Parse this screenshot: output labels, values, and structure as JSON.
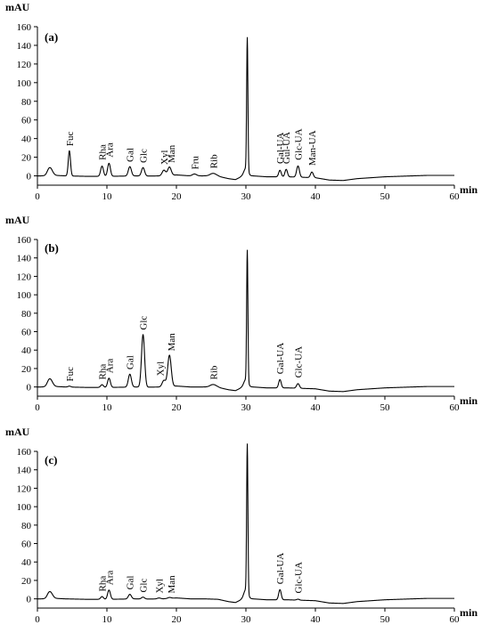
{
  "figure": {
    "x_unit": "min",
    "y_unit": "mAU"
  },
  "chart_data": [
    {
      "type": "line",
      "panel_label": "(a)",
      "ylabel": "mAU",
      "xlabel": "min",
      "xlim": [
        0,
        60
      ],
      "ylim": [
        -10,
        160
      ],
      "x_ticks": [
        0,
        10,
        20,
        30,
        40,
        50,
        60
      ],
      "y_ticks": [
        0,
        20,
        40,
        60,
        80,
        100,
        120,
        140,
        160
      ],
      "grid": false,
      "series": [
        {
          "baseline": [
            [
              0,
              0
            ],
            [
              1.2,
              0
            ],
            [
              1.6,
              1
            ],
            [
              2.6,
              0.5
            ],
            [
              4,
              0
            ],
            [
              7,
              -0.5
            ],
            [
              10,
              -0.5
            ],
            [
              12,
              -0.3
            ],
            [
              14,
              0
            ],
            [
              16,
              -0.2
            ],
            [
              18,
              0
            ],
            [
              20,
              1
            ],
            [
              22,
              0
            ],
            [
              24,
              0
            ],
            [
              26,
              -0.5
            ],
            [
              27.5,
              -3
            ],
            [
              28.5,
              -4
            ],
            [
              29.3,
              -1
            ],
            [
              29.8,
              0
            ],
            [
              31,
              0
            ],
            [
              33,
              -1
            ],
            [
              36,
              -1
            ],
            [
              40,
              -2
            ],
            [
              42,
              -4.5
            ],
            [
              44,
              -5
            ],
            [
              46,
              -3
            ],
            [
              48,
              -2
            ],
            [
              50,
              -1
            ],
            [
              52,
              -0.5
            ],
            [
              54,
              0
            ],
            [
              56,
              0.5
            ],
            [
              58,
              0.5
            ],
            [
              60,
              0.5
            ]
          ],
          "peaks": [
            {
              "rt": 1.8,
              "height": 8,
              "width": 0.35
            },
            {
              "rt": 4.6,
              "height": 27,
              "width": 0.16
            },
            {
              "rt": 9.3,
              "height": 11,
              "width": 0.2
            },
            {
              "rt": 10.3,
              "height": 14,
              "width": 0.2
            },
            {
              "rt": 13.3,
              "height": 10,
              "width": 0.22
            },
            {
              "rt": 15.2,
              "height": 9,
              "width": 0.22
            },
            {
              "rt": 18.2,
              "height": 6,
              "width": 0.25
            },
            {
              "rt": 19.0,
              "height": 9,
              "width": 0.25
            },
            {
              "rt": 22.6,
              "height": 2,
              "width": 0.3
            },
            {
              "rt": 25.3,
              "height": 3,
              "width": 0.45
            },
            {
              "rt": 30.2,
              "height": 142,
              "width": 0.09
            },
            {
              "rt": 30.0,
              "height": 8,
              "width": 0.3
            },
            {
              "rt": 34.9,
              "height": 7,
              "width": 0.18
            },
            {
              "rt": 35.8,
              "height": 8,
              "width": 0.18
            },
            {
              "rt": 37.5,
              "height": 12,
              "width": 0.2
            },
            {
              "rt": 39.5,
              "height": 6,
              "width": 0.2
            }
          ]
        }
      ],
      "annotations": [
        {
          "text": "Fuc",
          "x": 4.6,
          "y": 29
        },
        {
          "text": "Rha",
          "x": 9.3,
          "y": 14
        },
        {
          "text": "Ara",
          "x": 10.3,
          "y": 17
        },
        {
          "text": "Gal",
          "x": 13.3,
          "y": 12
        },
        {
          "text": "Glc",
          "x": 15.2,
          "y": 11
        },
        {
          "text": "Xyl",
          "x": 18.2,
          "y": 9
        },
        {
          "text": "Man",
          "x": 19.2,
          "y": 11
        },
        {
          "text": "Fru",
          "x": 22.6,
          "y": 4
        },
        {
          "text": "Rib",
          "x": 25.3,
          "y": 5
        },
        {
          "text": "Gal-UA",
          "x": 34.9,
          "y": 10
        },
        {
          "text": "Gul-UA",
          "x": 35.8,
          "y": 10
        },
        {
          "text": "Glc-UA",
          "x": 37.5,
          "y": 14
        },
        {
          "text": "Man-UA",
          "x": 39.5,
          "y": 8
        }
      ]
    },
    {
      "type": "line",
      "panel_label": "(b)",
      "ylabel": "mAU",
      "xlabel": "min",
      "xlim": [
        0,
        60
      ],
      "ylim": [
        -10,
        160
      ],
      "x_ticks": [
        0,
        10,
        20,
        30,
        40,
        50,
        60
      ],
      "y_ticks": [
        0,
        20,
        40,
        60,
        80,
        100,
        120,
        140,
        160
      ],
      "grid": false,
      "series": [
        {
          "baseline": [
            [
              0,
              0
            ],
            [
              1.2,
              0
            ],
            [
              1.6,
              1
            ],
            [
              2.6,
              0.5
            ],
            [
              4,
              0
            ],
            [
              7,
              -0.5
            ],
            [
              10,
              -0.5
            ],
            [
              12,
              -0.3
            ],
            [
              14,
              0
            ],
            [
              16,
              -0.2
            ],
            [
              18,
              0
            ],
            [
              20,
              1
            ],
            [
              22,
              0
            ],
            [
              24,
              0
            ],
            [
              26,
              -0.5
            ],
            [
              27.5,
              -3
            ],
            [
              28.5,
              -4
            ],
            [
              29.3,
              -1
            ],
            [
              29.8,
              0
            ],
            [
              31,
              0
            ],
            [
              33,
              -1
            ],
            [
              36,
              -1
            ],
            [
              40,
              -2
            ],
            [
              42,
              -4.5
            ],
            [
              44,
              -5
            ],
            [
              46,
              -3
            ],
            [
              48,
              -2
            ],
            [
              50,
              -1
            ],
            [
              52,
              -0.5
            ],
            [
              54,
              0
            ],
            [
              56,
              0.5
            ],
            [
              58,
              0.5
            ],
            [
              60,
              0.5
            ]
          ],
          "peaks": [
            {
              "rt": 1.8,
              "height": 8,
              "width": 0.35
            },
            {
              "rt": 4.6,
              "height": 1,
              "width": 0.2
            },
            {
              "rt": 9.3,
              "height": 3,
              "width": 0.2
            },
            {
              "rt": 10.3,
              "height": 10,
              "width": 0.2
            },
            {
              "rt": 13.3,
              "height": 14,
              "width": 0.22
            },
            {
              "rt": 15.2,
              "height": 57,
              "width": 0.22
            },
            {
              "rt": 18.2,
              "height": 7,
              "width": 0.25
            },
            {
              "rt": 19.0,
              "height": 34,
              "width": 0.25
            },
            {
              "rt": 25.3,
              "height": 3,
              "width": 0.45
            },
            {
              "rt": 30.2,
              "height": 142,
              "width": 0.09
            },
            {
              "rt": 30.0,
              "height": 8,
              "width": 0.3
            },
            {
              "rt": 34.9,
              "height": 9,
              "width": 0.18
            },
            {
              "rt": 37.5,
              "height": 5,
              "width": 0.2
            }
          ]
        }
      ],
      "annotations": [
        {
          "text": "Fuc",
          "x": 4.6,
          "y": 3
        },
        {
          "text": "Rha",
          "x": 9.3,
          "y": 5
        },
        {
          "text": "Ara",
          "x": 10.3,
          "y": 12
        },
        {
          "text": "Gal",
          "x": 13.3,
          "y": 16
        },
        {
          "text": "Glc",
          "x": 15.2,
          "y": 59
        },
        {
          "text": "Xyl",
          "x": 17.6,
          "y": 9
        },
        {
          "text": "Man",
          "x": 19.2,
          "y": 36
        },
        {
          "text": "Rib",
          "x": 25.3,
          "y": 5
        },
        {
          "text": "Gal-UA",
          "x": 34.9,
          "y": 11
        },
        {
          "text": "Glc-UA",
          "x": 37.5,
          "y": 7
        }
      ]
    },
    {
      "type": "line",
      "panel_label": "(c)",
      "ylabel": "mAU",
      "xlabel": "min",
      "xlim": [
        0,
        60
      ],
      "ylim": [
        -10,
        160
      ],
      "x_ticks": [
        0,
        10,
        20,
        30,
        40,
        50,
        60
      ],
      "y_ticks": [
        0,
        20,
        40,
        60,
        80,
        100,
        120,
        140,
        160
      ],
      "grid": false,
      "series": [
        {
          "baseline": [
            [
              0,
              0
            ],
            [
              1.2,
              0
            ],
            [
              1.6,
              1
            ],
            [
              2.6,
              0.5
            ],
            [
              4,
              0
            ],
            [
              7,
              -0.5
            ],
            [
              10,
              -0.5
            ],
            [
              12,
              -0.3
            ],
            [
              14,
              0
            ],
            [
              16,
              -0.2
            ],
            [
              18,
              0
            ],
            [
              20,
              1
            ],
            [
              22,
              0
            ],
            [
              24,
              0
            ],
            [
              26,
              -0.5
            ],
            [
              27.5,
              -3
            ],
            [
              28.5,
              -4
            ],
            [
              29.3,
              -1
            ],
            [
              29.8,
              0
            ],
            [
              31,
              0
            ],
            [
              33,
              -1
            ],
            [
              36,
              -1
            ],
            [
              40,
              -2
            ],
            [
              42,
              -4.5
            ],
            [
              44,
              -5
            ],
            [
              46,
              -3
            ],
            [
              48,
              -2
            ],
            [
              50,
              -1
            ],
            [
              52,
              -0.5
            ],
            [
              54,
              0
            ],
            [
              56,
              0.5
            ],
            [
              58,
              0.5
            ],
            [
              60,
              0.5
            ]
          ],
          "peaks": [
            {
              "rt": 1.8,
              "height": 7,
              "width": 0.35
            },
            {
              "rt": 9.3,
              "height": 3,
              "width": 0.2
            },
            {
              "rt": 10.3,
              "height": 10,
              "width": 0.2
            },
            {
              "rt": 13.3,
              "height": 5,
              "width": 0.22
            },
            {
              "rt": 15.2,
              "height": 2,
              "width": 0.22
            },
            {
              "rt": 17.5,
              "height": 1,
              "width": 0.25
            },
            {
              "rt": 19.0,
              "height": 1,
              "width": 0.25
            },
            {
              "rt": 30.2,
              "height": 160,
              "width": 0.09
            },
            {
              "rt": 30.0,
              "height": 10,
              "width": 0.3
            },
            {
              "rt": 34.9,
              "height": 11,
              "width": 0.18
            },
            {
              "rt": 37.5,
              "height": 1,
              "width": 0.2
            }
          ]
        }
      ],
      "annotations": [
        {
          "text": "Rha",
          "x": 9.3,
          "y": 5
        },
        {
          "text": "Ara",
          "x": 10.3,
          "y": 12
        },
        {
          "text": "Gal",
          "x": 13.3,
          "y": 7
        },
        {
          "text": "Glc",
          "x": 15.2,
          "y": 4
        },
        {
          "text": "Xyl",
          "x": 17.5,
          "y": 3
        },
        {
          "text": "Man",
          "x": 19.2,
          "y": 3
        },
        {
          "text": "Gal-UA",
          "x": 34.9,
          "y": 13
        },
        {
          "text": "Glc-UA",
          "x": 37.5,
          "y": 3
        }
      ]
    }
  ]
}
